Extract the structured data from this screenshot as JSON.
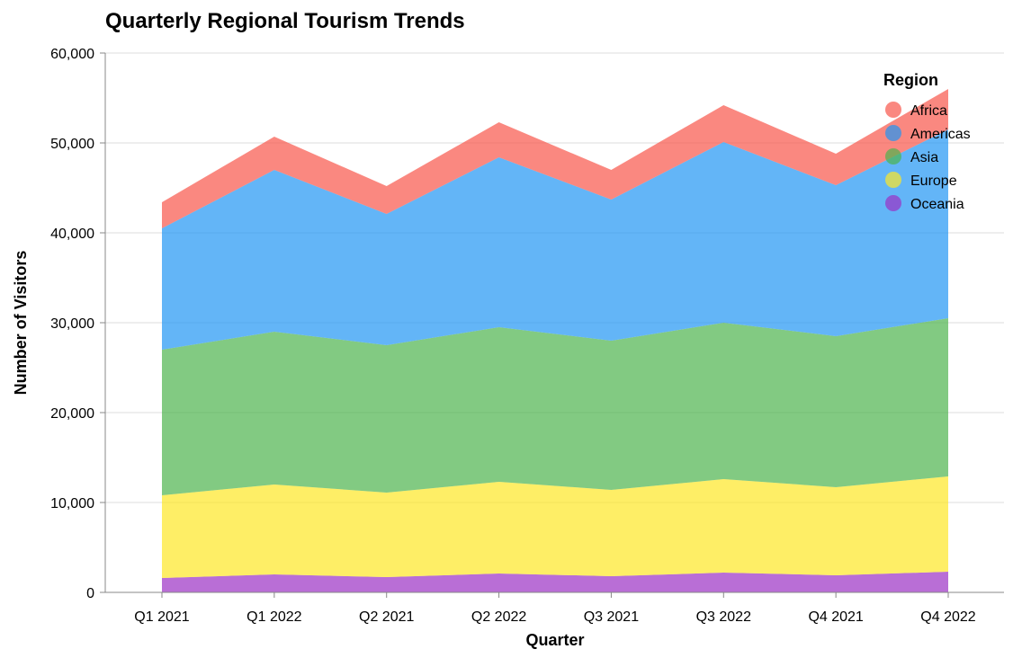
{
  "chart_data": {
    "type": "area",
    "stacked": true,
    "title": "Quarterly Regional Tourism Trends",
    "xlabel": "Quarter",
    "ylabel": "Number of Visitors",
    "ylim": [
      0,
      60000
    ],
    "yticks": [
      0,
      10000,
      20000,
      30000,
      40000,
      50000,
      60000
    ],
    "ytick_labels": [
      "0",
      "10,000",
      "20,000",
      "30,000",
      "40,000",
      "50,000",
      "60,000"
    ],
    "grid": true,
    "legend_title": "Region",
    "legend_position": "top-right",
    "categories": [
      "Q1 2021",
      "Q1 2022",
      "Q2 2021",
      "Q2 2022",
      "Q3 2021",
      "Q3 2022",
      "Q4 2021",
      "Q4 2022"
    ],
    "series": [
      {
        "name": "Oceania",
        "color": "#9b30c4",
        "values": [
          1600,
          2000,
          1700,
          2100,
          1800,
          2200,
          1900,
          2300
        ]
      },
      {
        "name": "Europe",
        "color": "#fde725",
        "values": [
          9200,
          10000,
          9400,
          10200,
          9600,
          10400,
          9800,
          10600
        ]
      },
      {
        "name": "Asia",
        "color": "#4db34d",
        "values": [
          16200,
          17000,
          16400,
          17200,
          16600,
          17400,
          16800,
          17600
        ]
      },
      {
        "name": "Americas",
        "color": "#2196f3",
        "values": [
          13500,
          18000,
          14600,
          18900,
          15700,
          20100,
          16800,
          21000
        ]
      },
      {
        "name": "Africa",
        "color": "#f8554a",
        "values": [
          2900,
          3700,
          3100,
          3900,
          3300,
          4100,
          3500,
          4500
        ]
      }
    ],
    "legend_order": [
      "Africa",
      "Americas",
      "Asia",
      "Europe",
      "Oceania"
    ]
  }
}
